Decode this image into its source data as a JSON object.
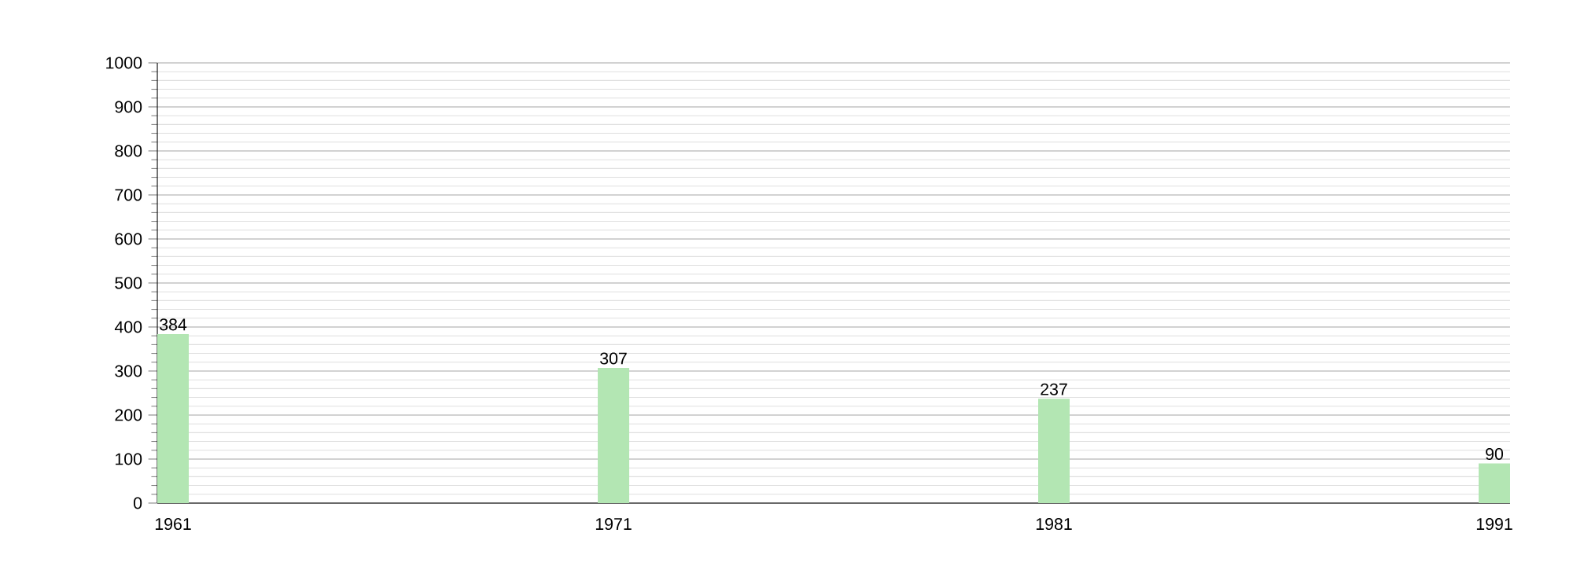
{
  "chart_data": {
    "type": "bar",
    "categories": [
      "1961",
      "1971",
      "1981",
      "1991"
    ],
    "values": [
      384,
      307,
      237,
      90
    ],
    "color": "#b3e6b3",
    "ylim": [
      0,
      1000
    ],
    "yticks": [
      0,
      100,
      200,
      300,
      400,
      500,
      600,
      700,
      800,
      900,
      1000
    ],
    "grid": "y",
    "data_labels": true
  }
}
